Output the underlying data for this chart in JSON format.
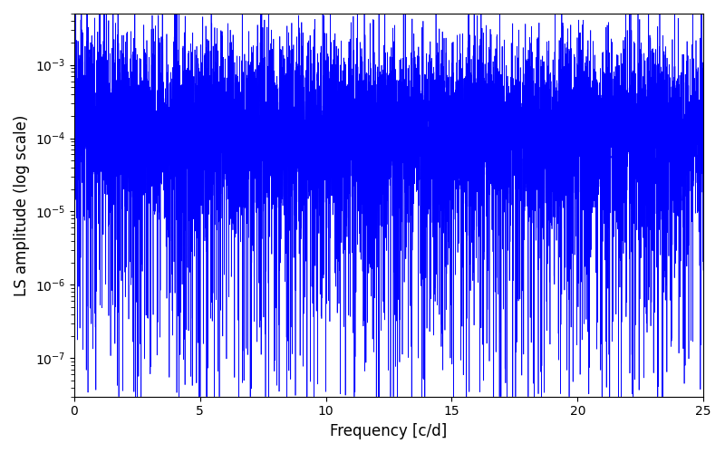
{
  "title": "",
  "xlabel": "Frequency [c/d]",
  "ylabel": "LS amplitude (log scale)",
  "xlim": [
    0,
    25
  ],
  "ylim": [
    3e-08,
    0.005
  ],
  "line_color": "#0000ff",
  "line_width": 0.5,
  "figsize": [
    8.0,
    5.0
  ],
  "dpi": 100,
  "freq_min": 0.0,
  "freq_max": 25.0,
  "n_points": 8000,
  "seed": 12345,
  "background_color": "#ffffff",
  "yticks": [
    1e-07,
    1e-06,
    1e-05,
    0.0001,
    0.001
  ],
  "xticks": [
    0,
    5,
    10,
    15,
    20,
    25
  ]
}
